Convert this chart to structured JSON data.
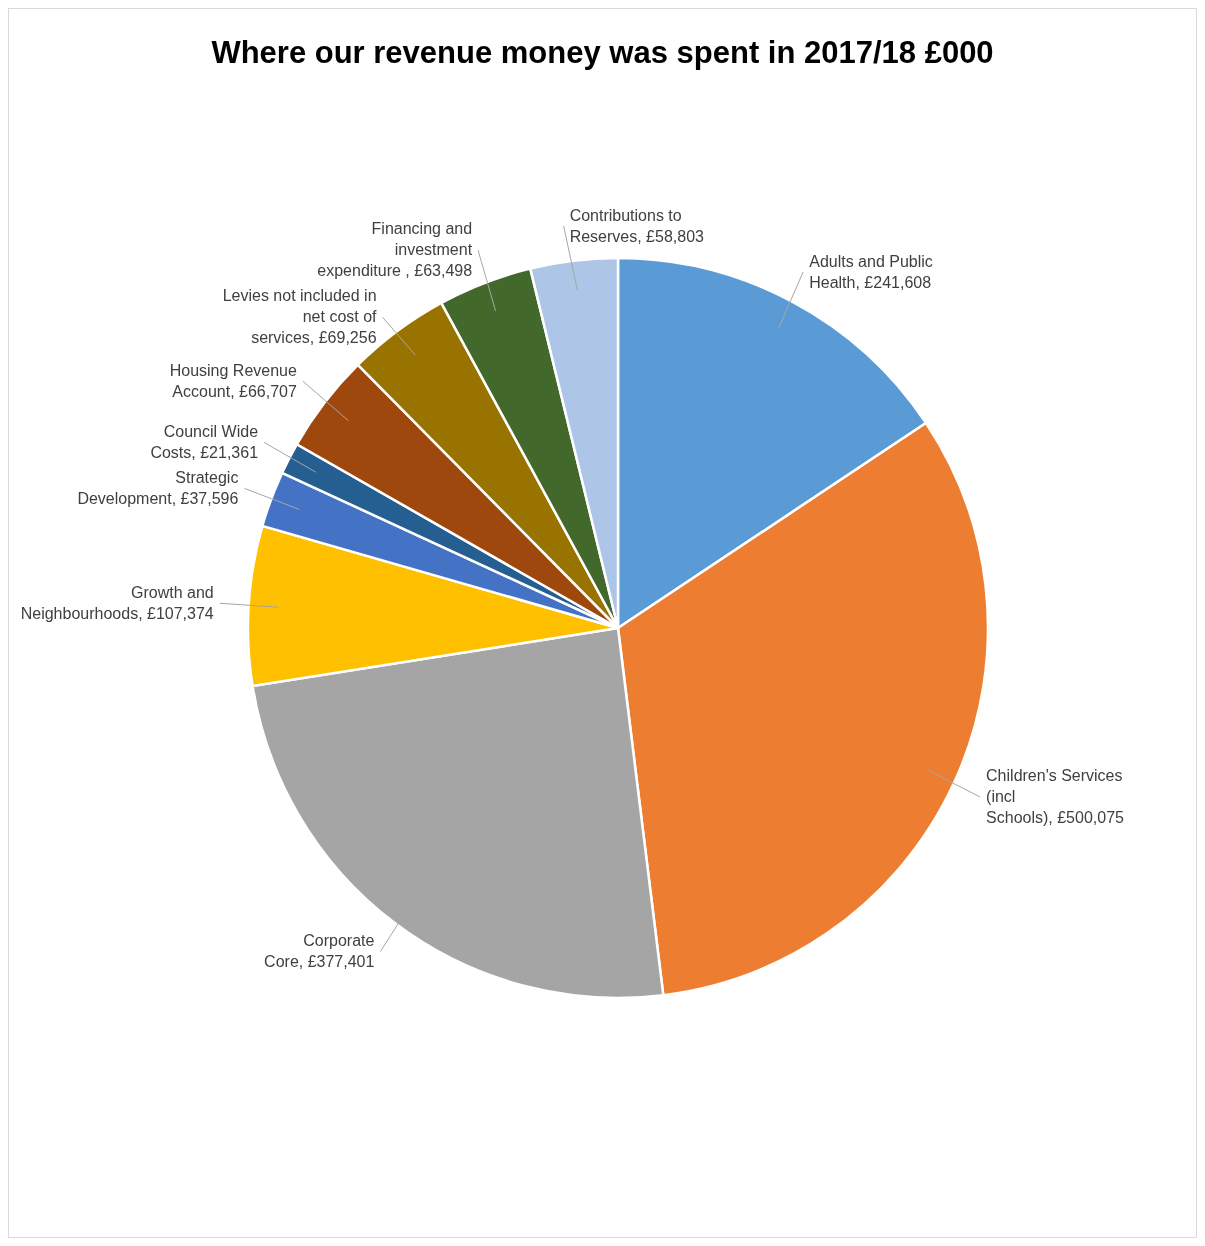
{
  "chart_data": {
    "type": "pie",
    "title": "Where our revenue money was spent in 2017/18 £000",
    "categories": [
      "Adults and Public Health",
      "Children's Services (incl Schools)",
      "Corporate Core",
      "Growth and Neighbourhoods",
      "Strategic Development",
      "Council Wide Costs",
      "Housing Revenue Account",
      "Levies not included in net cost of services",
      "Financing and investment expenditure ",
      "Contributions to Reserves"
    ],
    "values": [
      241608,
      500075,
      377401,
      107374,
      37596,
      21361,
      66707,
      69256,
      63498,
      58803
    ],
    "value_labels": [
      "£241,608",
      "£500,075",
      "£377,401",
      "£107,374",
      "£37,596",
      "£21,361",
      "£66,707",
      "£69,256",
      "£63,498",
      "£58,803"
    ],
    "colors": [
      "#5b9bd5",
      "#ed7d31",
      "#a5a5a5",
      "#ffc000",
      "#4472c4",
      "#255e91",
      "#9e480e",
      "#997300",
      "#43682b",
      "#adc6e8"
    ]
  }
}
